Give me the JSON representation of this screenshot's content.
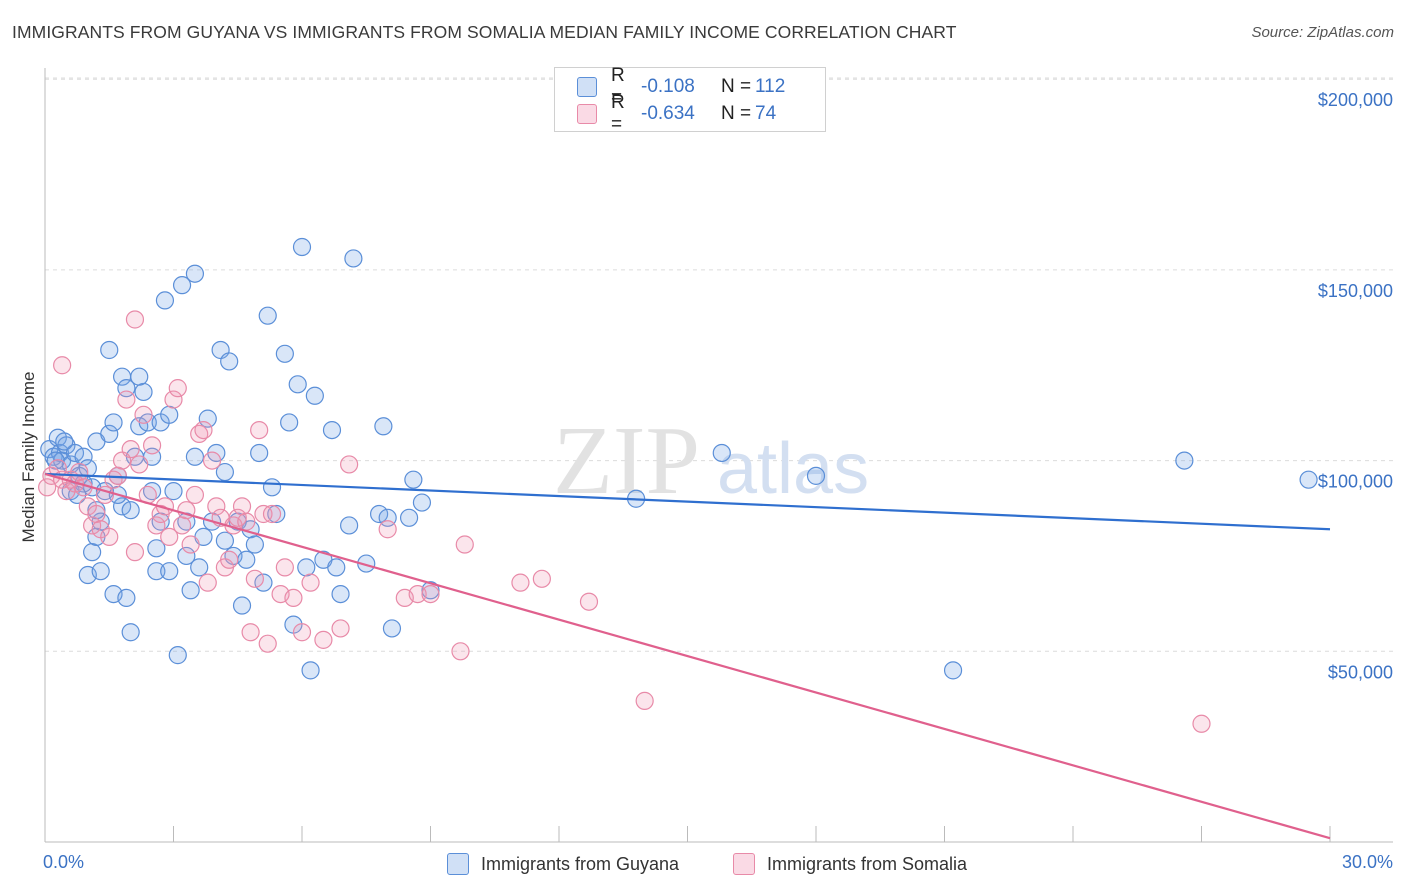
{
  "title": "IMMIGRANTS FROM GUYANA VS IMMIGRANTS FROM SOMALIA MEDIAN FAMILY INCOME CORRELATION CHART",
  "source": "Source: ZipAtlas.com",
  "watermark": {
    "zip": "ZIP",
    "atlas": "atlas"
  },
  "colors": {
    "guyana": "#5b8fd8",
    "guyana_fill": "rgba(120,165,230,0.28)",
    "guyana_line": "#2f6fcf",
    "somalia": "#e88aa8",
    "somalia_fill": "rgba(240,150,180,0.25)",
    "somalia_line": "#e0608d",
    "tick_text": "#3b72c4",
    "grid": "#dcdcdc"
  },
  "legend": {
    "guyana": {
      "r_label": "R =",
      "r_value": "-0.108",
      "n_label": "N =",
      "n_value": "112"
    },
    "somalia": {
      "r_label": "R =",
      "r_value": "-0.634",
      "n_label": "N =",
      "n_value": "74"
    }
  },
  "bottom_legend": {
    "guyana": "Immigrants from Guyana",
    "somalia": "Immigrants from Somalia"
  },
  "chart_data": {
    "type": "scatter",
    "title": "IMMIGRANTS FROM GUYANA VS IMMIGRANTS FROM SOMALIA MEDIAN FAMILY INCOME CORRELATION CHART",
    "xlabel": "",
    "ylabel": "Median Family Income",
    "xlim": [
      0,
      30
    ],
    "ylim": [
      0,
      210000
    ],
    "x_tick_labels": [
      "0.0%",
      "30.0%"
    ],
    "y_ticks": [
      50000,
      100000,
      150000,
      200000
    ],
    "y_tick_labels": [
      "$50,000",
      "$100,000",
      "$150,000",
      "$200,000"
    ],
    "series": [
      {
        "name": "Immigrants from Guyana",
        "trend": {
          "x": [
            0,
            30
          ],
          "y": [
            96500,
            82000
          ]
        },
        "points": [
          [
            0.1,
            103000
          ],
          [
            0.2,
            101000
          ],
          [
            0.3,
            106000
          ],
          [
            0.35,
            102000
          ],
          [
            0.4,
            100000
          ],
          [
            0.5,
            104000
          ],
          [
            0.6,
            99000
          ],
          [
            0.7,
            102000
          ],
          [
            0.8,
            96000
          ],
          [
            0.9,
            101000
          ],
          [
            1.0,
            98000
          ],
          [
            1.1,
            93000
          ],
          [
            0.6,
            92000
          ],
          [
            0.9,
            94000
          ],
          [
            1.2,
            105000
          ],
          [
            1.0,
            70000
          ],
          [
            1.1,
            76000
          ],
          [
            1.2,
            80000
          ],
          [
            1.3,
            84000
          ],
          [
            1.4,
            92000
          ],
          [
            1.5,
            107000
          ],
          [
            1.6,
            110000
          ],
          [
            1.7,
            96000
          ],
          [
            1.8,
            88000
          ],
          [
            1.2,
            87000
          ],
          [
            1.5,
            129000
          ],
          [
            1.6,
            65000
          ],
          [
            1.7,
            91000
          ],
          [
            1.8,
            122000
          ],
          [
            1.9,
            119000
          ],
          [
            1.9,
            64000
          ],
          [
            2.0,
            87000
          ],
          [
            2.1,
            101000
          ],
          [
            2.2,
            109000
          ],
          [
            2.3,
            118000
          ],
          [
            2.4,
            110000
          ],
          [
            2.5,
            101000
          ],
          [
            2.6,
            77000
          ],
          [
            2.7,
            110000
          ],
          [
            2.2,
            122000
          ],
          [
            2.0,
            55000
          ],
          [
            2.5,
            92000
          ],
          [
            2.6,
            71000
          ],
          [
            2.8,
            142000
          ],
          [
            2.9,
            112000
          ],
          [
            3.0,
            92000
          ],
          [
            2.7,
            84000
          ],
          [
            3.1,
            49000
          ],
          [
            3.2,
            146000
          ],
          [
            3.3,
            84000
          ],
          [
            3.4,
            66000
          ],
          [
            3.5,
            149000
          ],
          [
            3.3,
            75000
          ],
          [
            3.5,
            101000
          ],
          [
            3.6,
            72000
          ],
          [
            3.8,
            111000
          ],
          [
            3.7,
            80000
          ],
          [
            3.9,
            84000
          ],
          [
            4.0,
            102000
          ],
          [
            4.1,
            129000
          ],
          [
            4.2,
            97000
          ],
          [
            4.2,
            79000
          ],
          [
            4.3,
            126000
          ],
          [
            4.4,
            75000
          ],
          [
            4.5,
            84000
          ],
          [
            4.6,
            62000
          ],
          [
            4.7,
            74000
          ],
          [
            4.8,
            82000
          ],
          [
            4.9,
            78000
          ],
          [
            5.0,
            102000
          ],
          [
            5.1,
            68000
          ],
          [
            5.2,
            138000
          ],
          [
            5.3,
            93000
          ],
          [
            5.4,
            86000
          ],
          [
            5.6,
            128000
          ],
          [
            5.7,
            110000
          ],
          [
            5.8,
            57000
          ],
          [
            5.9,
            120000
          ],
          [
            6.0,
            156000
          ],
          [
            6.1,
            72000
          ],
          [
            6.2,
            45000
          ],
          [
            6.3,
            117000
          ],
          [
            6.5,
            74000
          ],
          [
            6.7,
            108000
          ],
          [
            6.8,
            72000
          ],
          [
            6.9,
            65000
          ],
          [
            7.1,
            83000
          ],
          [
            7.2,
            153000
          ],
          [
            7.5,
            73000
          ],
          [
            7.8,
            86000
          ],
          [
            7.9,
            109000
          ],
          [
            8.0,
            85000
          ],
          [
            8.1,
            56000
          ],
          [
            8.5,
            85000
          ],
          [
            8.6,
            95000
          ],
          [
            8.8,
            89000
          ],
          [
            9.0,
            66000
          ],
          [
            13.8,
            90000
          ],
          [
            15.8,
            102000
          ],
          [
            18.0,
            96000
          ],
          [
            21.2,
            45000
          ],
          [
            26.6,
            100000
          ],
          [
            29.5,
            95000
          ],
          [
            0.25,
            100000
          ],
          [
            0.45,
            105000
          ],
          [
            0.75,
            91000
          ],
          [
            1.3,
            71000
          ],
          [
            2.9,
            71000
          ]
        ]
      },
      {
        "name": "Immigrants from Somalia",
        "trend": {
          "x": [
            0,
            30
          ],
          "y": [
            96500,
            1000
          ]
        },
        "points": [
          [
            0.05,
            93000
          ],
          [
            0.15,
            96000
          ],
          [
            0.3,
            98000
          ],
          [
            0.4,
            95000
          ],
          [
            0.5,
            92000
          ],
          [
            0.6,
            95000
          ],
          [
            0.7,
            94000
          ],
          [
            0.8,
            97000
          ],
          [
            0.9,
            93000
          ],
          [
            1.0,
            88000
          ],
          [
            1.1,
            83000
          ],
          [
            1.2,
            86000
          ],
          [
            1.3,
            82000
          ],
          [
            1.4,
            91000
          ],
          [
            0.4,
            125000
          ],
          [
            1.5,
            80000
          ],
          [
            1.6,
            95000
          ],
          [
            1.7,
            96000
          ],
          [
            1.8,
            100000
          ],
          [
            1.9,
            116000
          ],
          [
            2.0,
            103000
          ],
          [
            2.1,
            76000
          ],
          [
            2.2,
            99000
          ],
          [
            2.3,
            112000
          ],
          [
            2.4,
            91000
          ],
          [
            2.5,
            104000
          ],
          [
            2.6,
            83000
          ],
          [
            2.7,
            86000
          ],
          [
            2.8,
            88000
          ],
          [
            2.9,
            80000
          ],
          [
            3.0,
            116000
          ],
          [
            3.1,
            119000
          ],
          [
            3.2,
            83000
          ],
          [
            3.3,
            87000
          ],
          [
            3.4,
            78000
          ],
          [
            3.5,
            91000
          ],
          [
            3.6,
            107000
          ],
          [
            3.7,
            108000
          ],
          [
            3.8,
            68000
          ],
          [
            3.9,
            100000
          ],
          [
            4.0,
            88000
          ],
          [
            4.1,
            85000
          ],
          [
            4.2,
            72000
          ],
          [
            4.3,
            74000
          ],
          [
            4.4,
            83000
          ],
          [
            4.5,
            85000
          ],
          [
            4.6,
            88000
          ],
          [
            4.7,
            84000
          ],
          [
            4.8,
            55000
          ],
          [
            4.9,
            69000
          ],
          [
            5.0,
            108000
          ],
          [
            5.1,
            86000
          ],
          [
            5.2,
            52000
          ],
          [
            5.3,
            86000
          ],
          [
            5.5,
            65000
          ],
          [
            5.6,
            72000
          ],
          [
            5.8,
            64000
          ],
          [
            6.0,
            55000
          ],
          [
            6.2,
            68000
          ],
          [
            6.5,
            53000
          ],
          [
            6.9,
            56000
          ],
          [
            7.1,
            99000
          ],
          [
            8.0,
            82000
          ],
          [
            8.4,
            64000
          ],
          [
            8.7,
            65000
          ],
          [
            9.0,
            65000
          ],
          [
            9.7,
            50000
          ],
          [
            9.8,
            78000
          ],
          [
            11.1,
            68000
          ],
          [
            11.6,
            69000
          ],
          [
            12.7,
            63000
          ],
          [
            14.0,
            37000
          ],
          [
            27.0,
            31000
          ],
          [
            2.1,
            137000
          ]
        ]
      }
    ]
  }
}
